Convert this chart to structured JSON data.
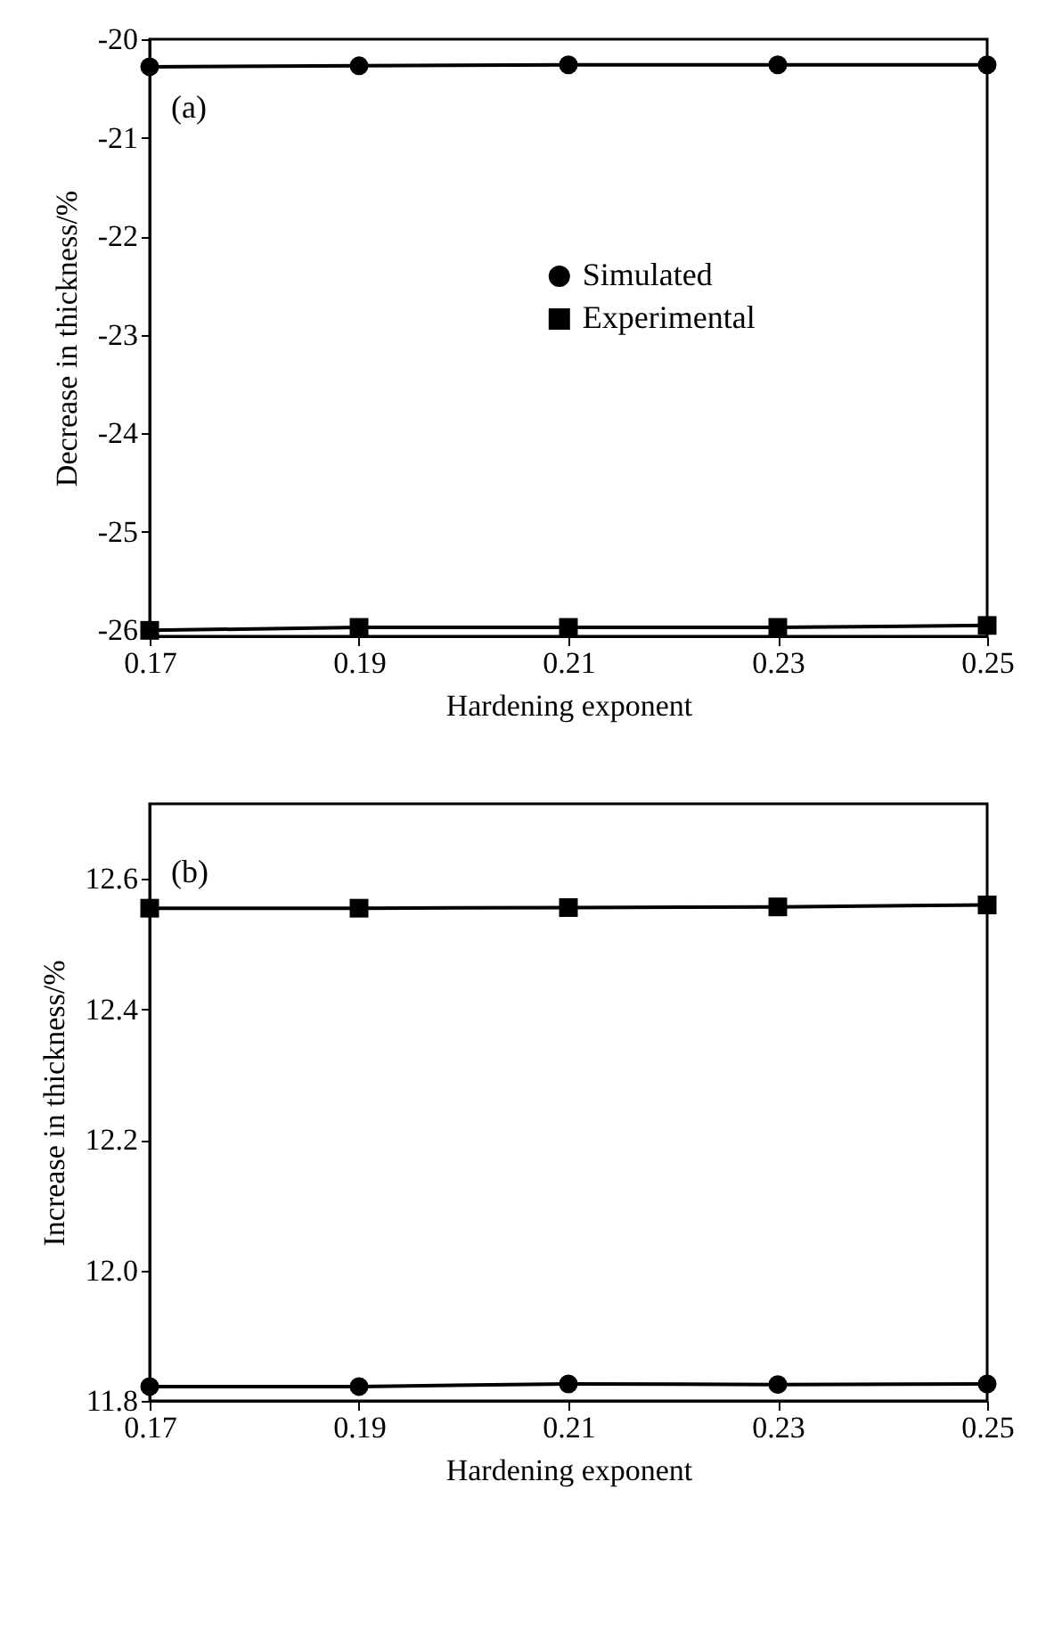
{
  "chart_data": [
    {
      "type": "line",
      "xlabel": "Hardening exponent",
      "ylabel": "Decrease in thickness/%",
      "annotations": [
        "(a)"
      ],
      "x": [
        0.17,
        0.19,
        0.21,
        0.23,
        0.25
      ],
      "xlim": [
        0.17,
        0.25
      ],
      "xticks": [
        0.17,
        0.19,
        0.21,
        0.23,
        0.25
      ],
      "ylim": [
        -26.06,
        -20
      ],
      "yticks": [
        -26,
        -25,
        -24,
        -23,
        -22,
        -21,
        -20
      ],
      "grid": false,
      "legend": "right",
      "line_style": "solid",
      "series": [
        {
          "name": "Simulated",
          "color": "#000000",
          "marker": "circle",
          "values": [
            -20.28,
            -20.27,
            -20.26,
            -20.26,
            -20.26
          ]
        },
        {
          "name": "Experimental",
          "color": "#000000",
          "marker": "square",
          "values": [
            -26.0,
            -25.97,
            -25.97,
            -25.97,
            -25.95
          ]
        }
      ]
    },
    {
      "type": "line",
      "xlabel": "Hardening exponent",
      "ylabel": "Increase in thickness/%",
      "annotations": [
        "(b)"
      ],
      "x": [
        0.17,
        0.19,
        0.21,
        0.23,
        0.25
      ],
      "xlim": [
        0.17,
        0.25
      ],
      "xticks": [
        0.17,
        0.19,
        0.21,
        0.23,
        0.25
      ],
      "ylim": [
        11.8,
        12.715
      ],
      "yticks": [
        {
          "value": 11.8,
          "label": "11.8"
        },
        {
          "value": 12.0,
          "label": "12.0"
        },
        {
          "value": 12.2,
          "label": "12.2"
        },
        {
          "value": 12.4,
          "label": "12.4"
        },
        {
          "value": 12.6,
          "label": "12.6"
        }
      ],
      "grid": false,
      "legend": "right",
      "line_style": "solid",
      "series": [
        {
          "name": "Simulated",
          "color": "#000000",
          "marker": "circle",
          "values": [
            11.822,
            11.822,
            11.826,
            11.825,
            11.826
          ]
        },
        {
          "name": "Experimental",
          "color": "#000000",
          "marker": "square",
          "values": [
            12.555,
            12.555,
            12.556,
            12.557,
            12.56
          ]
        }
      ]
    }
  ]
}
